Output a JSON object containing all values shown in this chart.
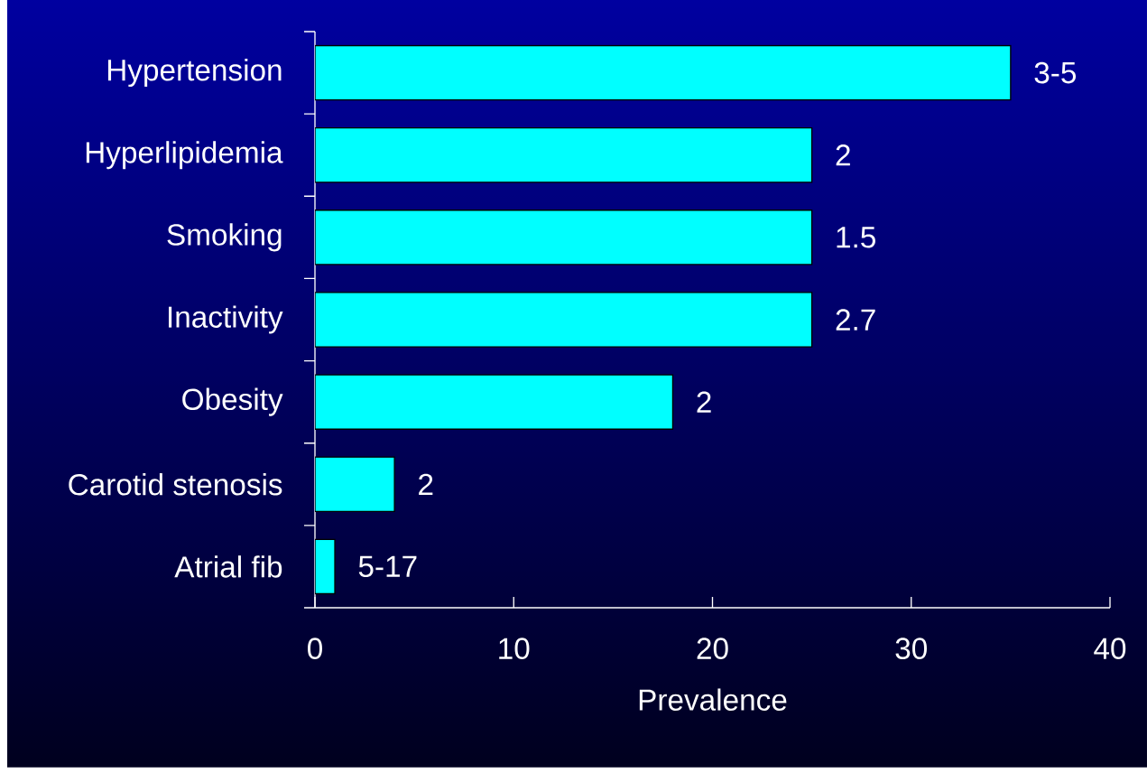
{
  "chart_data": {
    "type": "bar",
    "orientation": "horizontal",
    "categories": [
      "Hypertension",
      "Hyperlipidemia",
      "Smoking",
      "Inactivity",
      "Obesity",
      "Carotid stenosis",
      "Atrial fib"
    ],
    "values": [
      35,
      25,
      25,
      25,
      18,
      4,
      1
    ],
    "color": "#00ffff",
    "xlabel": "Prevalence",
    "xlim": [
      0,
      40
    ],
    "xticks": [
      0,
      10,
      20,
      30,
      40
    ],
    "annotations": [
      {
        "text": "3-5",
        "x": 35,
        "y": "Hypertension"
      },
      {
        "text": "2",
        "x": 25,
        "y": "Hyperlipidemia"
      },
      {
        "text": "1.5",
        "x": 25,
        "y": "Smoking"
      },
      {
        "text": "2.7",
        "x": 25,
        "y": "Inactivity"
      },
      {
        "text": "2",
        "x": 18,
        "y": "Obesity"
      },
      {
        "text": "2",
        "x": 4,
        "y": "Carotid stenosis"
      },
      {
        "text": "5-17",
        "x": 1,
        "y": "Atrial fib"
      }
    ]
  }
}
